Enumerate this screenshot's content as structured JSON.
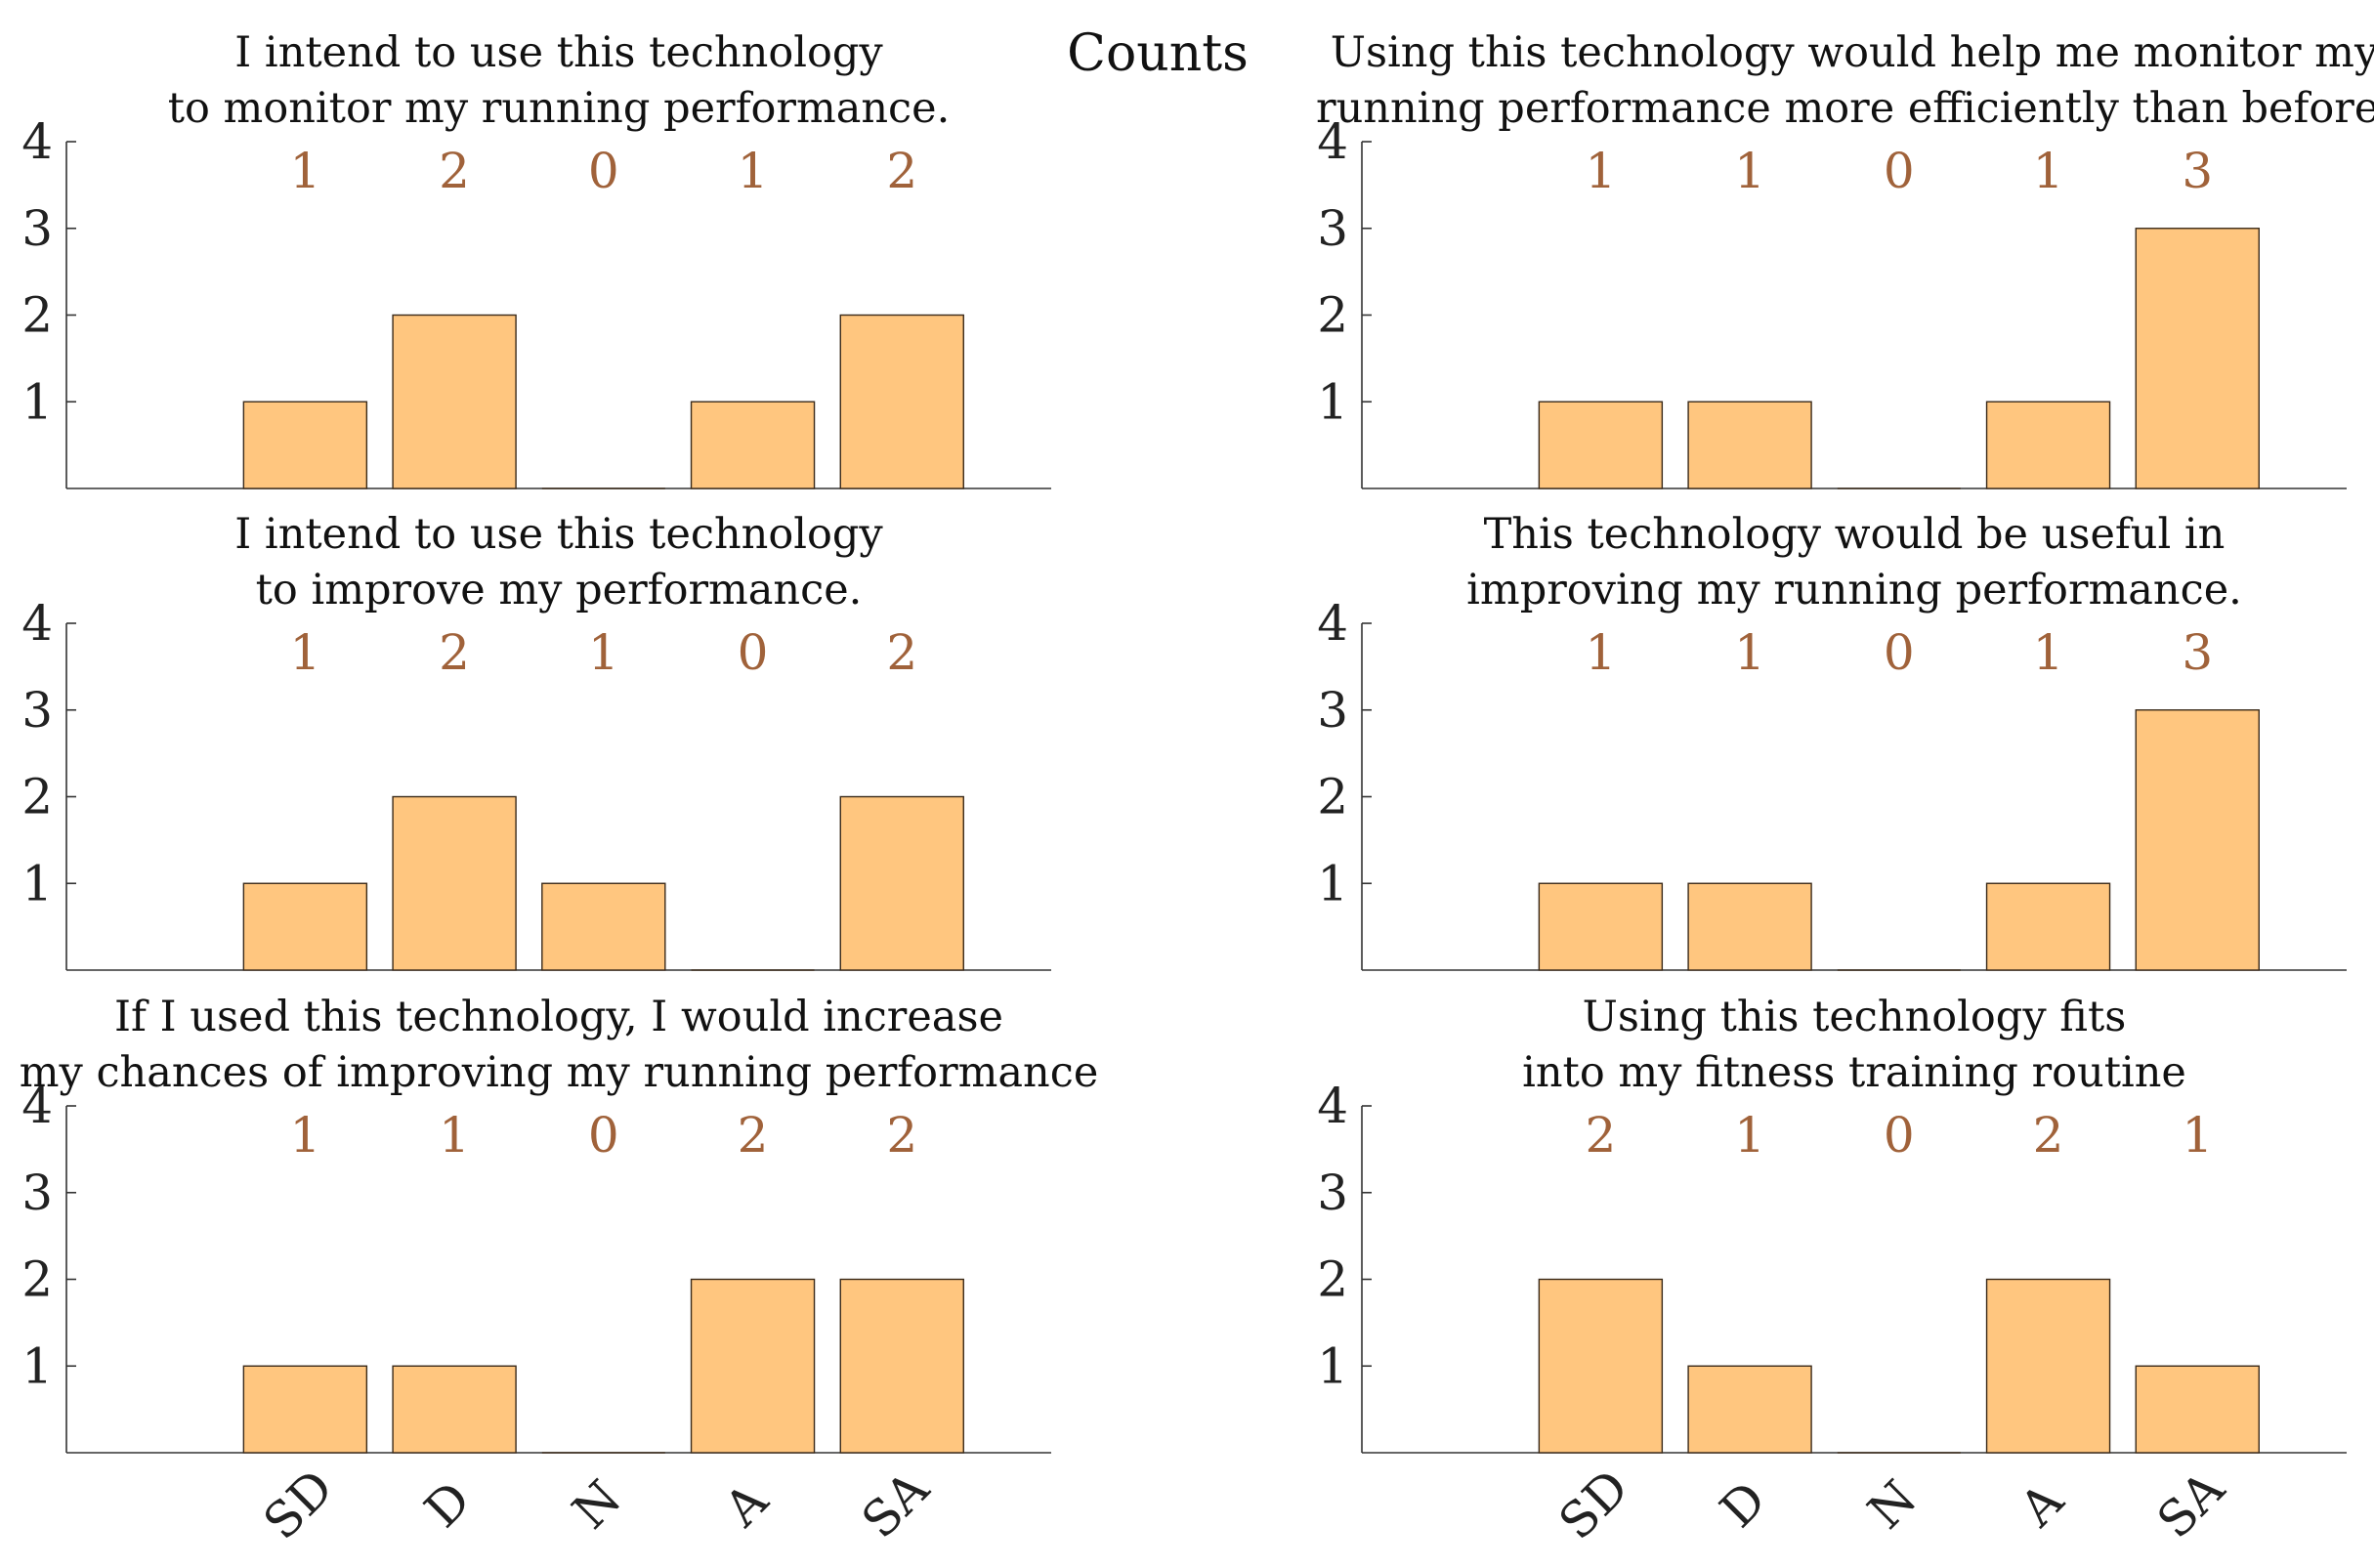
{
  "figure": {
    "title": "Counts",
    "bar_color": "#FFC67F",
    "bar_edge_color": "#3A2A1A",
    "label_color": "#A0623A",
    "axis_color": "#333333"
  },
  "chart_data": [
    {
      "type": "bar",
      "title": "I intend to use this technology to monitor my running performance.",
      "title_lines": [
        "I intend to use this technology",
        "to monitor my running performance."
      ],
      "categories": [
        "SD",
        "D",
        "N",
        "A",
        "SA"
      ],
      "values": [
        1,
        2,
        0,
        1,
        2
      ],
      "ylim": [
        0,
        4
      ],
      "yticks": [
        1,
        2,
        3,
        4
      ],
      "show_xticklabels": false,
      "legend": "none",
      "grid": false
    },
    {
      "type": "bar",
      "title": "Using this technology would help me monitor my running performance more efficiently than before.",
      "title_lines": [
        "Using this technology would help me monitor my",
        "running performance more efficiently than before."
      ],
      "categories": [
        "SD",
        "D",
        "N",
        "A",
        "SA"
      ],
      "values": [
        1,
        1,
        0,
        1,
        3
      ],
      "ylim": [
        0,
        4
      ],
      "yticks": [
        1,
        2,
        3,
        4
      ],
      "show_xticklabels": false,
      "legend": "none",
      "grid": false
    },
    {
      "type": "bar",
      "title": "I intend to use this technology to improve my performance.",
      "title_lines": [
        "I intend to use this technology",
        "to improve my performance."
      ],
      "categories": [
        "SD",
        "D",
        "N",
        "A",
        "SA"
      ],
      "values": [
        1,
        2,
        1,
        0,
        2
      ],
      "ylim": [
        0,
        4
      ],
      "yticks": [
        1,
        2,
        3,
        4
      ],
      "show_xticklabels": false,
      "legend": "none",
      "grid": false
    },
    {
      "type": "bar",
      "title": "This technology would be useful in improving my running performance.",
      "title_lines": [
        "This technology would be useful in",
        "improving my running performance."
      ],
      "categories": [
        "SD",
        "D",
        "N",
        "A",
        "SA"
      ],
      "values": [
        1,
        1,
        0,
        1,
        3
      ],
      "ylim": [
        0,
        4
      ],
      "yticks": [
        1,
        2,
        3,
        4
      ],
      "show_xticklabels": false,
      "legend": "none",
      "grid": false
    },
    {
      "type": "bar",
      "title": "If I used this technology, I would increase my chances of improving my running performance",
      "title_lines": [
        "If I used this technology, I would increase",
        "my chances of improving my running performance"
      ],
      "categories": [
        "SD",
        "D",
        "N",
        "A",
        "SA"
      ],
      "values": [
        1,
        1,
        0,
        2,
        2
      ],
      "ylim": [
        0,
        4
      ],
      "yticks": [
        1,
        2,
        3,
        4
      ],
      "show_xticklabels": true,
      "legend": "none",
      "grid": false
    },
    {
      "type": "bar",
      "title": "Using this technology fits into my fitness training routine",
      "title_lines": [
        "Using this technology fits",
        "into my fitness training routine"
      ],
      "categories": [
        "SD",
        "D",
        "N",
        "A",
        "SA"
      ],
      "values": [
        2,
        1,
        0,
        2,
        1
      ],
      "ylim": [
        0,
        4
      ],
      "yticks": [
        1,
        2,
        3,
        4
      ],
      "show_xticklabels": true,
      "legend": "none",
      "grid": false
    }
  ]
}
